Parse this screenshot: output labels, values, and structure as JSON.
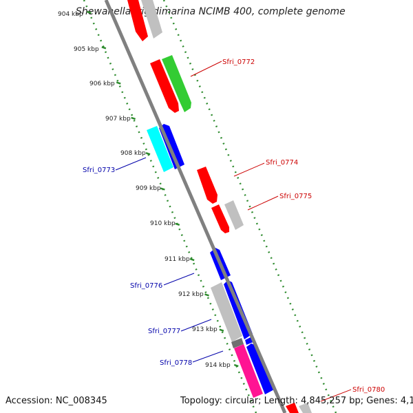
{
  "title": "Shewanella frigidimarina NCIMB 400, complete genome",
  "footer": {
    "accession": "Accession: NC_008345",
    "summary": "Topology: circular; Length: 4,845,257 bp; Genes: 4,161"
  },
  "scale_labels": [
    "904 kbp",
    "905 kbp",
    "906 kbp",
    "907 kbp",
    "908 kbp",
    "909 kbp",
    "910 kbp",
    "911 kbp",
    "912 kbp",
    "913 kbp",
    "914 kbp"
  ],
  "gene_labels": [
    {
      "text": "Sfri_0772",
      "color": "#cc0000"
    },
    {
      "text": "Sfri_0773",
      "color": "#0000aa"
    },
    {
      "text": "Sfri_0774",
      "color": "#cc0000"
    },
    {
      "text": "Sfri_0775",
      "color": "#cc0000"
    },
    {
      "text": "Sfri_0776",
      "color": "#0000aa"
    },
    {
      "text": "Sfri_0777",
      "color": "#0000aa"
    },
    {
      "text": "Sfri_0778",
      "color": "#0000aa"
    },
    {
      "text": "Sfri_0780",
      "color": "#cc0000"
    }
  ],
  "colors": {
    "backbone": "#808080",
    "dotted_track": "#2e8b2e",
    "forward_gene": "#ff0000",
    "reverse_gene": "#0000ff",
    "rna_gene": "#33cc33",
    "cyan_gene": "#00ffff",
    "pseudo_gene": "#c0c0c0",
    "pink_gene": "#ff1493"
  }
}
